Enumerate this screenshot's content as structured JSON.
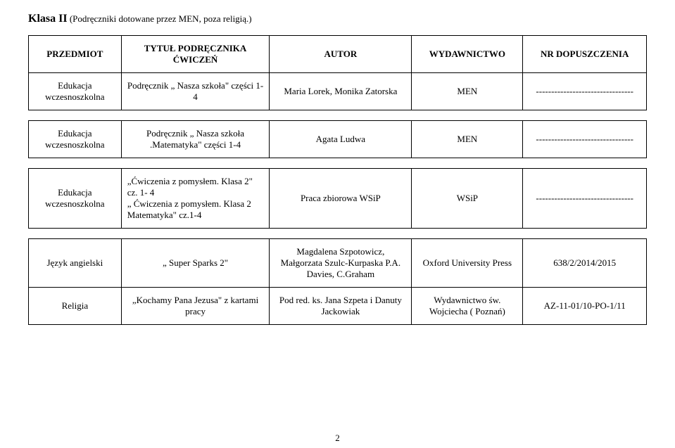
{
  "title": {
    "bold": "Klasa II",
    "rest": " (Podręczniki dotowane przez MEN, poza religią.)"
  },
  "headers": {
    "subject": "PRZEDMIOT",
    "book": "TYTUŁ PODRĘCZNIKA\nĆWICZEŃ",
    "author": "AUTOR",
    "publisher": "WYDAWNICTWO",
    "approval": "NR DOPUSZCZENIA"
  },
  "rows": [
    {
      "subject": "Edukacja wczesnoszkolna",
      "book": "Podręcznik „ Nasza szkoła\" części 1-4",
      "author": "Maria Lorek, Monika Zatorska",
      "publisher": "MEN",
      "approval": "--------------------------------"
    },
    {
      "subject": "Edukacja wczesnoszkolna",
      "book": "Podręcznik „ Nasza szkoła .Matematyka\" części 1-4",
      "author": "Agata Ludwa",
      "publisher": "MEN",
      "approval": "--------------------------------"
    },
    {
      "subject": "Edukacja wczesnoszkolna",
      "book": "„Ćwiczenia z pomysłem. Klasa 2\" cz. 1- 4\n„ Ćwiczenia z pomysłem. Klasa 2 Matematyka\" cz.1-4",
      "author": "Praca zbiorowa WSiP",
      "publisher": "WSiP",
      "approval": "--------------------------------"
    },
    {
      "subject": "Język angielski",
      "book": "„ Super Sparks 2\"",
      "author": "Magdalena Szpotowicz, Małgorzata Szulc-Kurpaska P.A. Davies, C.Graham",
      "publisher": "Oxford University Press",
      "approval": "638/2/2014/2015"
    },
    {
      "subject": "Religia",
      "book": "„Kochamy Pana Jezusa\" z kartami pracy",
      "author": "Pod red. ks. Jana Szpeta i Danuty Jackowiak",
      "publisher": "Wydawnictwo św. Wojciecha ( Poznań)",
      "approval": "AZ-11-01/10-PO-1/11"
    }
  ],
  "page_number": "2"
}
